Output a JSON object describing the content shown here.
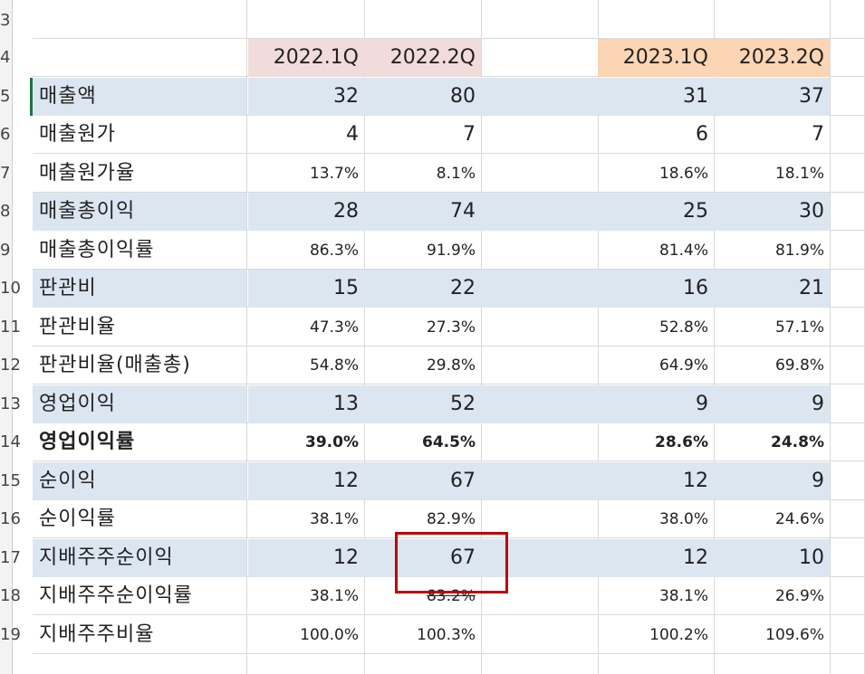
{
  "row_numbers": [
    "3",
    "4",
    "5",
    "6",
    "7",
    "8",
    "9",
    "10",
    "11",
    "12",
    "13",
    "14",
    "15",
    "16",
    "17",
    "18",
    "19"
  ],
  "headers": [
    "2022.1Q",
    "2022.2Q",
    "2023.1Q",
    "2023.2Q"
  ],
  "rows": [
    {
      "label": "매출액",
      "v": [
        "32",
        "80",
        "31",
        "37"
      ]
    },
    {
      "label": "매출원가",
      "v": [
        "4",
        "7",
        "6",
        "7"
      ]
    },
    {
      "label": "매출원가율",
      "v": [
        "13.7%",
        "8.1%",
        "18.6%",
        "18.1%"
      ]
    },
    {
      "label": "매출총이익",
      "v": [
        "28",
        "74",
        "25",
        "30"
      ]
    },
    {
      "label": "매출총이익률",
      "v": [
        "86.3%",
        "91.9%",
        "81.4%",
        "81.9%"
      ]
    },
    {
      "label": "판관비",
      "v": [
        "15",
        "22",
        "16",
        "21"
      ]
    },
    {
      "label": "판관비율",
      "v": [
        "47.3%",
        "27.3%",
        "52.8%",
        "57.1%"
      ]
    },
    {
      "label": "판관비율(매출총)",
      "v": [
        "54.8%",
        "29.8%",
        "64.9%",
        "69.8%"
      ]
    },
    {
      "label": "영업이익",
      "v": [
        "13",
        "52",
        "9",
        "9"
      ]
    },
    {
      "label": "영업이익률",
      "v": [
        "39.0%",
        "64.5%",
        "28.6%",
        "24.8%"
      ]
    },
    {
      "label": "순이익",
      "v": [
        "12",
        "67",
        "12",
        "9"
      ]
    },
    {
      "label": "순이익률",
      "v": [
        "38.1%",
        "82.9%",
        "38.0%",
        "24.6%"
      ]
    },
    {
      "label": "지배주주순이익",
      "v": [
        "12",
        "67",
        "12",
        "10"
      ]
    },
    {
      "label": "지배주주순이익률",
      "v": [
        "38.1%",
        "83.2%",
        "38.1%",
        "26.9%"
      ]
    },
    {
      "label": "지배주주비율",
      "v": [
        "100.0%",
        "100.3%",
        "100.2%",
        "109.6%"
      ]
    }
  ],
  "colors": {
    "header_2022": "#f2dcdb",
    "header_2023": "#fcd5b4",
    "band": "#dce6f1",
    "highlight": "#c00000"
  }
}
